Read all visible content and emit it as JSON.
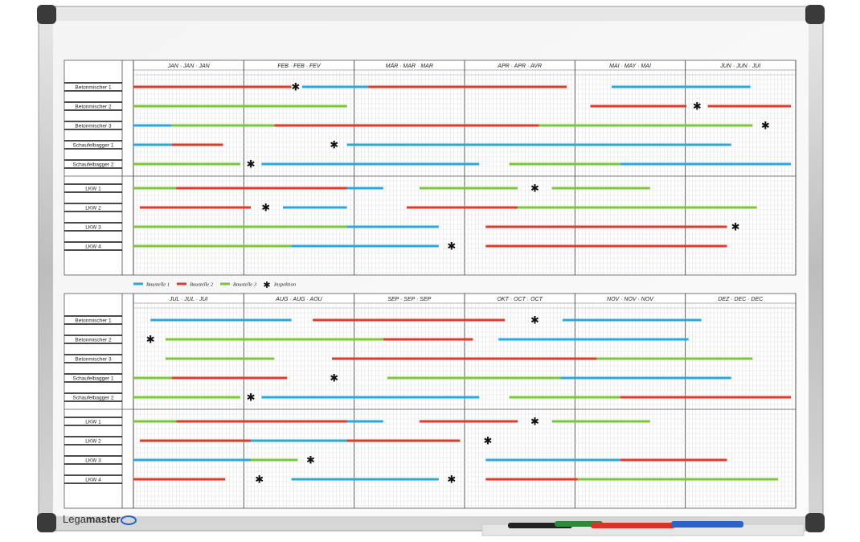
{
  "brand": {
    "name_light": "Lega",
    "name_bold": "master"
  },
  "rows": [
    "Betonmischer 1",
    "Betonmischer 2",
    "Betonmischer 3",
    "Schaufelbagger 1",
    "Schaufelbagger 2",
    "LKW 1",
    "LKW 2",
    "LKW 3",
    "LKW 4"
  ],
  "months_top": [
    "JAN · JAN · JAN",
    "FEB · FEB · FEV",
    "MÄR · MAR · MAR",
    "APR · APR · AVR",
    "MAI · MAY · MAI",
    "JUN · JUN · JUI"
  ],
  "months_bottom": [
    "JUL · JUL · JUI",
    "AUG · AUG · AOU",
    "SEP · SEP · SEP",
    "OKT · OCT · OCT",
    "NOV · NOV · NOV",
    "DEZ · DEC · DEC"
  ],
  "legend": [
    {
      "label": "Baustelle 1",
      "color": "#2aa8dd"
    },
    {
      "label": "Baustelle 2",
      "color": "#e03a2a"
    },
    {
      "label": "Baustelle 3",
      "color": "#7cc63a"
    },
    {
      "label": "Inspektion",
      "symbol": "✱"
    }
  ],
  "colors": {
    "b": "#2aa8dd",
    "r": "#e03a2a",
    "g": "#7cc63a"
  },
  "bars_top": [
    [
      [
        "r",
        0,
        7.4
      ],
      [
        "b",
        7.9,
        11
      ],
      [
        "r",
        11,
        20.3
      ],
      [
        "b",
        22.4,
        28.9
      ]
    ],
    [
      [
        "g",
        0,
        10
      ],
      [
        "r",
        21.4,
        25.9
      ],
      [
        "r",
        26.9,
        30.8
      ]
    ],
    [
      [
        "b",
        0,
        1.8
      ],
      [
        "g",
        1.8,
        6.6
      ],
      [
        "r",
        6.6,
        19
      ],
      [
        "g",
        19,
        29
      ]
    ],
    [
      [
        "b",
        0,
        1.8
      ],
      [
        "r",
        1.8,
        4.2
      ],
      [
        "b",
        10,
        28
      ]
    ],
    [
      [
        "g",
        0,
        5
      ],
      [
        "b",
        6,
        16.2
      ],
      [
        "g",
        17.6,
        22.8
      ],
      [
        "b",
        22.8,
        30.8
      ]
    ],
    [
      [
        "g",
        0,
        2
      ],
      [
        "r",
        2,
        10
      ],
      [
        "b",
        10,
        11.7
      ],
      [
        "g",
        13.4,
        18
      ],
      [
        "g",
        19.6,
        24.2
      ]
    ],
    [
      [
        "r",
        0.3,
        5.5
      ],
      [
        "b",
        7,
        10
      ],
      [
        "r",
        12.8,
        18
      ],
      [
        "g",
        18,
        29.2
      ]
    ],
    [
      [
        "g",
        0,
        10
      ],
      [
        "b",
        10,
        14.3
      ],
      [
        "r",
        16.5,
        27.8
      ]
    ],
    [
      [
        "g",
        0,
        7.4
      ],
      [
        "b",
        7.4,
        14.3
      ],
      [
        "r",
        16.5,
        27.8
      ]
    ]
  ],
  "stars_top": [
    [
      7.6
    ],
    [
      26.4
    ],
    [
      29.6
    ],
    [
      9.4
    ],
    [
      5.5
    ],
    [
      18.8
    ],
    [
      6.2
    ],
    [
      28.2
    ],
    [
      14.9
    ]
  ],
  "bars_bottom": [
    [
      [
        "b",
        0.8,
        7.4
      ],
      [
        "r",
        8.4,
        17.4
      ],
      [
        "b",
        20.1,
        26.6
      ]
    ],
    [
      [
        "g",
        1.5,
        11.7
      ],
      [
        "r",
        11.7,
        15.9
      ],
      [
        "b",
        17.1,
        26
      ]
    ],
    [
      [
        "g",
        1.5,
        6.6
      ],
      [
        "r",
        9.3,
        21.7
      ],
      [
        "g",
        21.7,
        29
      ]
    ],
    [
      [
        "g",
        0,
        1.8
      ],
      [
        "r",
        1.8,
        7.2
      ],
      [
        "g",
        11.9,
        20
      ],
      [
        "b",
        20,
        28
      ]
    ],
    [
      [
        "g",
        0,
        5
      ],
      [
        "b",
        6,
        16.2
      ],
      [
        "g",
        17.6,
        22.8
      ],
      [
        "r",
        22.8,
        30.8
      ]
    ],
    [
      [
        "g",
        0,
        2
      ],
      [
        "r",
        2,
        10
      ],
      [
        "b",
        10,
        11.7
      ],
      [
        "r",
        13.4,
        18
      ],
      [
        "g",
        19.6,
        24.2
      ]
    ],
    [
      [
        "r",
        0.3,
        5.5
      ],
      [
        "b",
        5.5,
        10
      ],
      [
        "r",
        10,
        15.3
      ]
    ],
    [
      [
        "b",
        0,
        5.5
      ],
      [
        "g",
        5.5,
        7.7
      ],
      [
        "b",
        16.5,
        22.8
      ],
      [
        "r",
        22.8,
        27.8
      ]
    ],
    [
      [
        "r",
        0,
        4.3
      ],
      [
        "b",
        7.4,
        14.3
      ],
      [
        "r",
        16.5,
        20.8
      ],
      [
        "g",
        20.8,
        30.2
      ]
    ]
  ],
  "stars_bottom": [
    [
      18.8
    ],
    [
      0.8
    ],
    [],
    [
      9.4
    ],
    [
      5.5
    ],
    [
      18.8
    ],
    [
      16.6
    ],
    [
      8.3
    ],
    [
      5.9,
      14.9
    ]
  ]
}
